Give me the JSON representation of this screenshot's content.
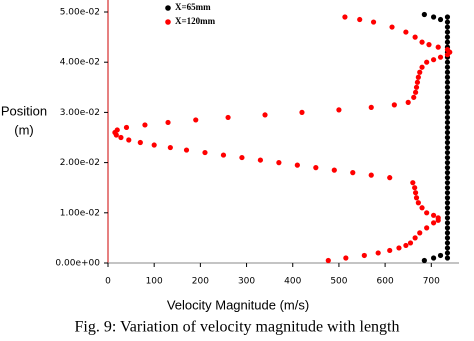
{
  "chart_data": {
    "type": "scatter",
    "caption": "Fig. 9: Variation of velocity magnitude with length",
    "xlabel": "Velocity Magnitude (m/s)",
    "ylabel": [
      "Position",
      "(m)"
    ],
    "xlim": [
      0,
      760
    ],
    "ylim": [
      0,
      0.05
    ],
    "xticks": [
      0,
      100,
      200,
      300,
      400,
      500,
      600,
      700
    ],
    "yticks": [
      {
        "value": 0,
        "label": "0.00e+00"
      },
      {
        "value": 0.01,
        "label": "1.00e-02"
      },
      {
        "value": 0.02,
        "label": "2.00e-02"
      },
      {
        "value": 0.03,
        "label": "3.00e-02"
      },
      {
        "value": 0.04,
        "label": "4.00e-02"
      },
      {
        "value": 0.05,
        "label": "5.00e-02"
      }
    ],
    "series": [
      {
        "name": "X=65mm",
        "color": "#000000",
        "x": [
          685,
          705,
          720,
          685,
          705,
          720,
          735,
          735,
          735,
          735,
          735,
          735,
          735,
          735,
          735,
          735,
          735,
          735,
          735,
          735,
          735,
          735,
          735,
          735,
          735,
          735,
          735,
          735,
          735,
          735,
          735,
          735,
          735,
          735,
          735,
          735,
          735,
          735,
          735,
          735,
          735,
          735,
          735,
          735,
          735,
          735,
          735,
          735,
          735,
          735,
          735,
          735,
          735,
          735,
          735
        ],
        "values": [
          0.0005,
          0.001,
          0.0015,
          0.0495,
          0.049,
          0.0485,
          0.001,
          0.002,
          0.003,
          0.004,
          0.005,
          0.006,
          0.007,
          0.008,
          0.009,
          0.01,
          0.011,
          0.012,
          0.013,
          0.014,
          0.015,
          0.016,
          0.017,
          0.018,
          0.019,
          0.02,
          0.021,
          0.022,
          0.023,
          0.024,
          0.025,
          0.026,
          0.027,
          0.028,
          0.029,
          0.03,
          0.031,
          0.032,
          0.033,
          0.034,
          0.035,
          0.036,
          0.037,
          0.038,
          0.039,
          0.04,
          0.041,
          0.042,
          0.043,
          0.044,
          0.045,
          0.046,
          0.047,
          0.048,
          0.049
        ]
      },
      {
        "name": "X=120mm",
        "color": "#ff0000",
        "x": [
          477,
          515,
          555,
          585,
          610,
          630,
          645,
          655,
          665,
          675,
          690,
          705,
          715,
          715,
          705,
          690,
          680,
          672,
          668,
          666,
          664,
          660,
          610,
          570,
          530,
          490,
          450,
          410,
          370,
          330,
          290,
          250,
          210,
          170,
          135,
          100,
          70,
          45,
          28,
          18,
          15,
          20,
          40,
          80,
          130,
          190,
          260,
          340,
          420,
          500,
          570,
          620,
          650,
          662,
          666,
          668,
          670,
          672,
          675,
          680,
          690,
          705,
          720,
          735,
          740,
          735,
          715,
          695,
          680,
          665,
          645,
          615,
          575,
          545,
          513
        ],
        "values": [
          0.0005,
          0.001,
          0.0015,
          0.002,
          0.0025,
          0.003,
          0.0035,
          0.004,
          0.005,
          0.006,
          0.007,
          0.008,
          0.0085,
          0.009,
          0.0095,
          0.01,
          0.011,
          0.012,
          0.013,
          0.014,
          0.015,
          0.016,
          0.017,
          0.0175,
          0.018,
          0.0185,
          0.019,
          0.0195,
          0.02,
          0.0205,
          0.021,
          0.0215,
          0.022,
          0.0225,
          0.023,
          0.0235,
          0.024,
          0.0245,
          0.025,
          0.0255,
          0.026,
          0.0265,
          0.027,
          0.0275,
          0.028,
          0.0285,
          0.029,
          0.0295,
          0.03,
          0.0305,
          0.031,
          0.0315,
          0.032,
          0.033,
          0.034,
          0.035,
          0.036,
          0.037,
          0.038,
          0.039,
          0.04,
          0.0405,
          0.041,
          0.0415,
          0.042,
          0.0425,
          0.043,
          0.0435,
          0.044,
          0.045,
          0.046,
          0.047,
          0.048,
          0.0485,
          0.049
        ]
      }
    ]
  }
}
